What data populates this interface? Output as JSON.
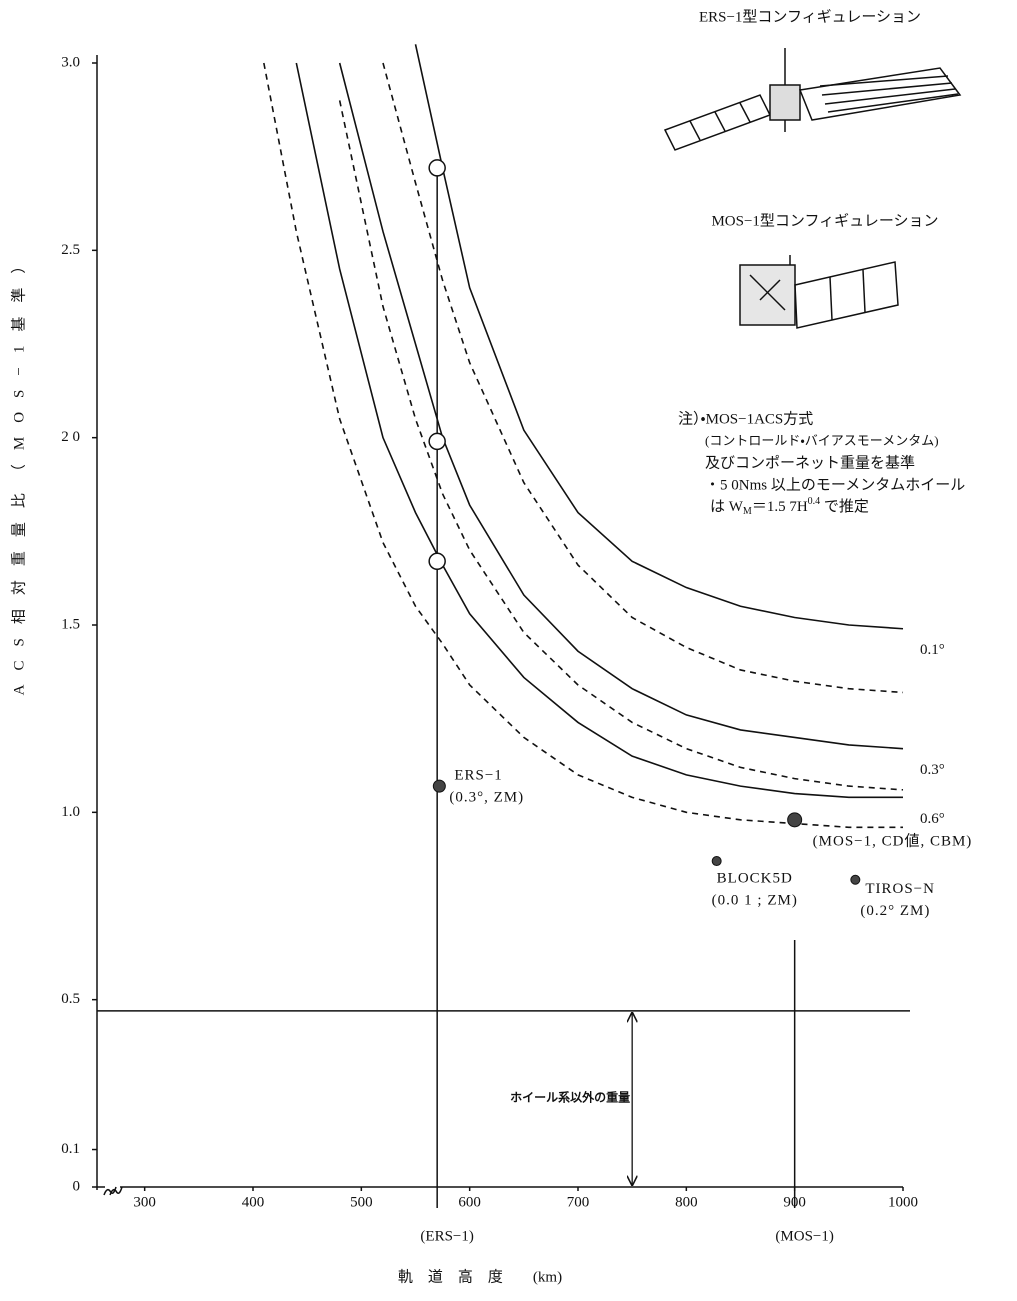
{
  "chart_data": {
    "type": "line",
    "y_label": "ACS相対重量比（MOS−1基準）",
    "x_label": "軌　道　高　度　　(km)",
    "xlim": [
      256,
      1000
    ],
    "ylim": [
      0,
      3.0
    ],
    "xticks": [
      300,
      400,
      500,
      600,
      700,
      800,
      900,
      1000
    ],
    "yticks": [
      {
        "value": 3.0,
        "label": "3.0"
      },
      2.5,
      {
        "value": 2.0,
        "label": "2 0"
      },
      1.5,
      {
        "value": 1.0,
        "label": "1.0"
      },
      0.5,
      0.1,
      0
    ],
    "x": [
      410,
      440,
      480,
      520,
      550,
      575,
      600,
      650,
      700,
      750,
      800,
      850,
      900,
      950,
      1000
    ],
    "series": [
      {
        "color": "#111",
        "style": "dashed",
        "values": [
          3.0,
          2.55,
          2.05,
          1.72,
          1.55,
          1.45,
          1.34,
          1.2,
          1.1,
          1.04,
          1.0,
          0.98,
          0.97,
          0.96,
          0.96
        ]
      },
      {
        "name": "0.6°",
        "color": "#111",
        "style": "solid",
        "values": [
          null,
          3.0,
          2.45,
          2.0,
          1.8,
          1.66,
          1.53,
          1.36,
          1.24,
          1.15,
          1.1,
          1.07,
          1.05,
          1.04,
          1.04
        ]
      },
      {
        "color": "#111",
        "style": "dashed",
        "values": [
          null,
          null,
          2.9,
          2.35,
          2.05,
          1.85,
          1.7,
          1.48,
          1.34,
          1.24,
          1.17,
          1.12,
          1.09,
          1.07,
          1.06
        ]
      },
      {
        "name": "0.3°",
        "color": "#111",
        "style": "solid",
        "values": [
          null,
          null,
          3.0,
          2.55,
          2.25,
          2.0,
          1.82,
          1.58,
          1.43,
          1.33,
          1.26,
          1.22,
          1.2,
          1.18,
          1.17
        ]
      },
      {
        "color": "#111",
        "style": "dashed",
        "values": [
          null,
          null,
          null,
          3.0,
          2.68,
          2.42,
          2.2,
          1.88,
          1.66,
          1.52,
          1.44,
          1.38,
          1.35,
          1.33,
          1.32
        ]
      },
      {
        "name": "0.1°",
        "color": "#111",
        "style": "solid",
        "values": [
          null,
          null,
          null,
          null,
          3.05,
          2.72,
          2.4,
          2.02,
          1.8,
          1.67,
          1.6,
          1.55,
          1.52,
          1.5,
          1.49
        ]
      }
    ],
    "open_points": {
      "x": [
        570,
        570,
        570
      ],
      "y": [
        2.72,
        1.99,
        1.67
      ]
    },
    "filled_points": [
      {
        "x": 572,
        "y": 1.07,
        "label": [
          "ERS−1",
          "(0.3°, ZM)"
        ]
      },
      {
        "x": 900,
        "y": 0.98,
        "label": [
          "(MOS−1, CD値, CBM)"
        ]
      },
      {
        "x": 828,
        "y": 0.87,
        "label": [
          "BLOCK5D",
          "(0.0 1 ; ZM)"
        ]
      },
      {
        "x": 956,
        "y": 0.82,
        "label": [
          "TIROS−N",
          "(0.2° ZM)"
        ]
      }
    ],
    "vertical_guides": [
      {
        "x": 570,
        "label": "(ERS−1)"
      },
      {
        "x": 900,
        "label": "(MOS−1)"
      }
    ],
    "horizontal_guide": 0.47,
    "arrow": {
      "x": 750,
      "label": "ホイール系以外の重量"
    },
    "ers_caption": "ERS−1型コンフィギュレーション",
    "mos_caption": "MOS−1型コンフィギュレーション",
    "notes": [
      "注）・MOS−1ACS方式",
      "(コントロールド・バイアスモーメンタム)",
      "及びコンポーネット重量を基準",
      "・5 0Nms 以上のモーメンタムホイール"
    ],
    "formula": [
      "は W",
      "M",
      "＝1.5 7H",
      "0.4",
      " で推定"
    ]
  }
}
